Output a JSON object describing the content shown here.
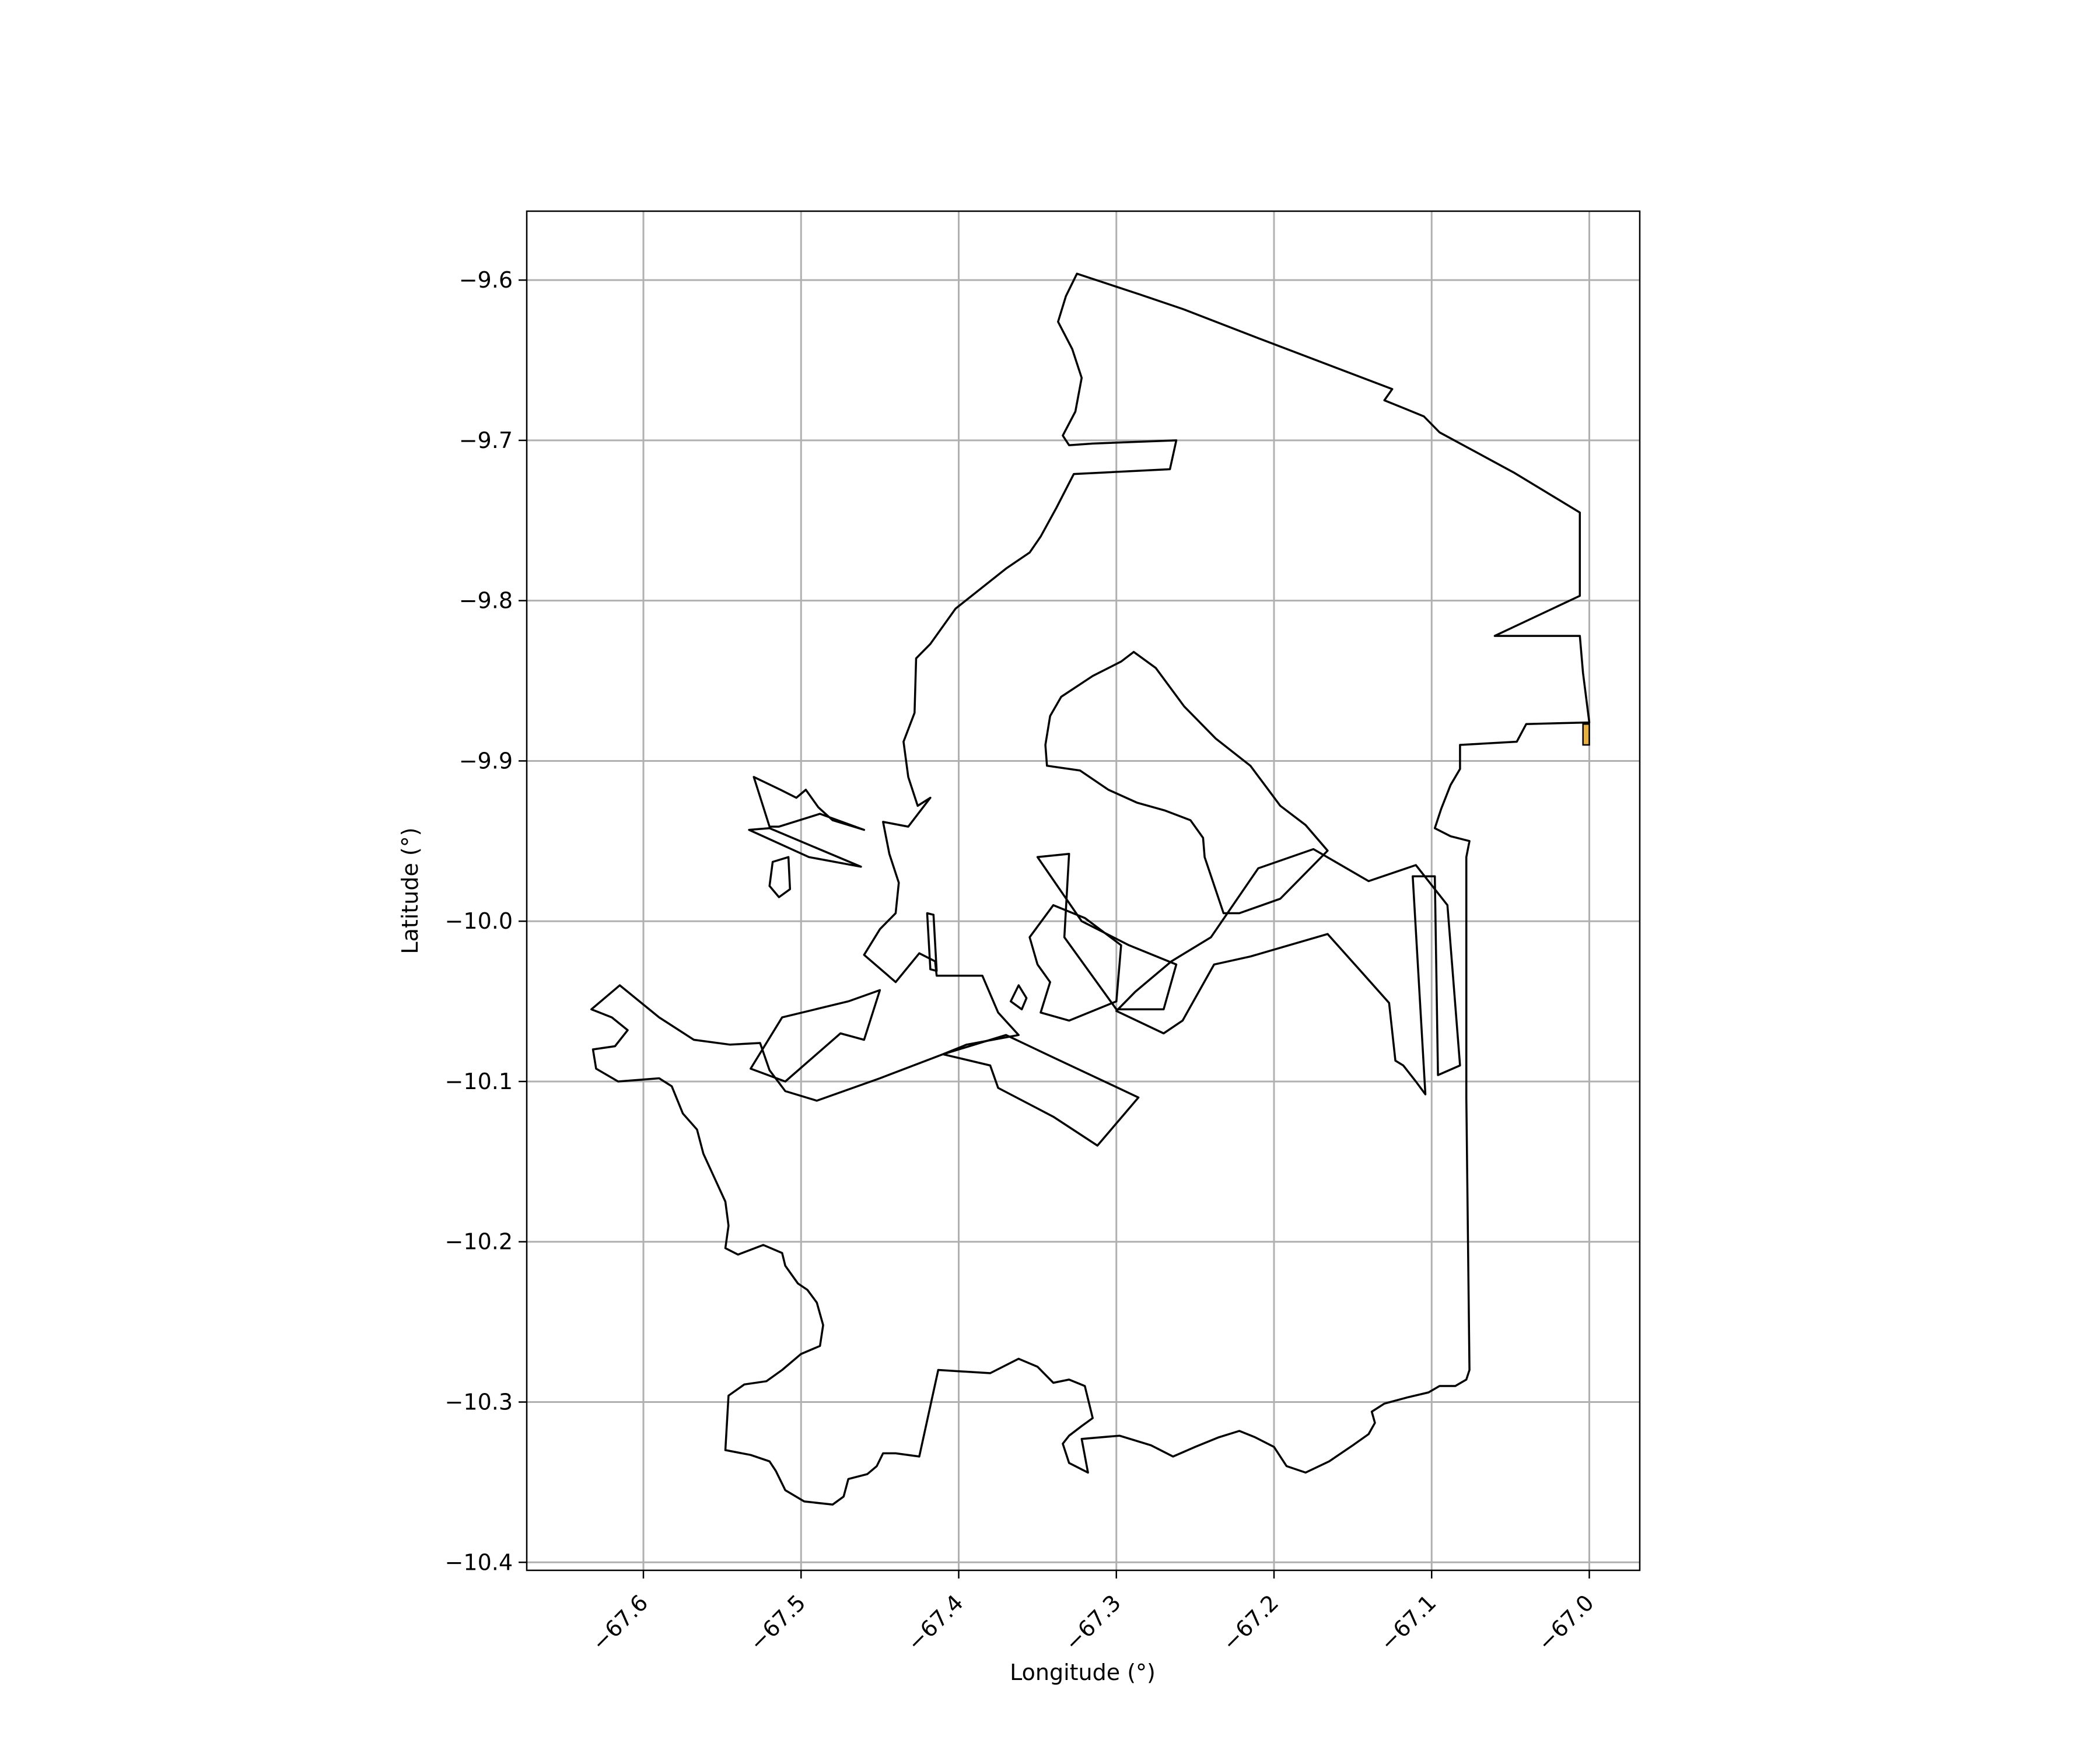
{
  "chart_data": {
    "type": "map",
    "xlabel": "Longitude (°)",
    "ylabel": "Latitude (°)",
    "xlim": [
      -67.674,
      -66.968
    ],
    "ylim": [
      -10.405,
      -9.557
    ],
    "xticks": [
      -67.6,
      -67.5,
      -67.4,
      -67.3,
      -67.2,
      -67.1,
      -67.0
    ],
    "xtick_labels": [
      "−67.6",
      "−67.5",
      "−67.4",
      "−67.3",
      "−67.2",
      "−67.1",
      "−67.0"
    ],
    "yticks": [
      -9.6,
      -9.7,
      -9.8,
      -9.9,
      -10.0,
      -10.1,
      -10.2,
      -10.3,
      -10.4
    ],
    "ytick_labels": [
      "−9.6",
      "−9.7",
      "−9.8",
      "−9.9",
      "−10.0",
      "−10.1",
      "−10.2",
      "−10.3",
      "−10.4"
    ],
    "grid": true,
    "outline_color": "#000000",
    "highlight_color": "#e8b040",
    "grid_color": "#b0b0b0",
    "polygons": [
      {
        "name": "outer-boundary",
        "coords": [
          [
            -67.325,
            -9.596
          ],
          [
            -67.332,
            -9.61
          ],
          [
            -67.337,
            -9.626
          ],
          [
            -67.328,
            -9.643
          ],
          [
            -67.322,
            -9.661
          ],
          [
            -67.326,
            -9.682
          ],
          [
            -67.334,
            -9.697
          ],
          [
            -67.33,
            -9.703
          ],
          [
            -67.315,
            -9.702
          ],
          [
            -67.262,
            -9.7
          ],
          [
            -67.266,
            -9.718
          ],
          [
            -67.327,
            -9.721
          ],
          [
            -67.338,
            -9.742
          ],
          [
            -67.348,
            -9.76
          ],
          [
            -67.355,
            -9.77
          ],
          [
            -67.37,
            -9.78
          ],
          [
            -67.402,
            -9.805
          ],
          [
            -67.418,
            -9.827
          ],
          [
            -67.427,
            -9.836
          ],
          [
            -67.428,
            -9.87
          ],
          [
            -67.435,
            -9.888
          ],
          [
            -67.432,
            -9.91
          ],
          [
            -67.426,
            -9.928
          ],
          [
            -67.418,
            -9.923
          ],
          [
            -67.432,
            -9.941
          ],
          [
            -67.448,
            -9.938
          ],
          [
            -67.444,
            -9.958
          ],
          [
            -67.438,
            -9.976
          ],
          [
            -67.44,
            -9.995
          ],
          [
            -67.45,
            -10.005
          ],
          [
            -67.46,
            -10.021
          ],
          [
            -67.44,
            -10.038
          ],
          [
            -67.425,
            -10.02
          ],
          [
            -67.415,
            -10.025
          ],
          [
            -67.414,
            -10.034
          ],
          [
            -67.385,
            -10.034
          ],
          [
            -67.375,
            -10.057
          ],
          [
            -67.362,
            -10.071
          ],
          [
            -67.395,
            -10.077
          ],
          [
            -67.41,
            -10.083
          ],
          [
            -67.45,
            -10.098
          ],
          [
            -67.49,
            -10.112
          ],
          [
            -67.51,
            -10.106
          ],
          [
            -67.52,
            -10.093
          ],
          [
            -67.526,
            -10.076
          ],
          [
            -67.545,
            -10.077
          ],
          [
            -67.568,
            -10.074
          ],
          [
            -67.59,
            -10.06
          ],
          [
            -67.615,
            -10.04
          ],
          [
            -67.633,
            -10.055
          ],
          [
            -67.62,
            -10.06
          ],
          [
            -67.61,
            -10.068
          ],
          [
            -67.618,
            -10.078
          ],
          [
            -67.632,
            -10.08
          ],
          [
            -67.63,
            -10.092
          ],
          [
            -67.616,
            -10.1
          ],
          [
            -67.59,
            -10.098
          ],
          [
            -67.582,
            -10.103
          ],
          [
            -67.575,
            -10.12
          ],
          [
            -67.566,
            -10.13
          ],
          [
            -67.562,
            -10.145
          ],
          [
            -67.555,
            -10.16
          ],
          [
            -67.548,
            -10.175
          ],
          [
            -67.546,
            -10.19
          ],
          [
            -67.548,
            -10.204
          ],
          [
            -67.54,
            -10.208
          ],
          [
            -67.524,
            -10.202
          ],
          [
            -67.512,
            -10.207
          ],
          [
            -67.51,
            -10.215
          ],
          [
            -67.502,
            -10.226
          ],
          [
            -67.496,
            -10.23
          ],
          [
            -67.49,
            -10.238
          ],
          [
            -67.486,
            -10.252
          ],
          [
            -67.488,
            -10.265
          ],
          [
            -67.5,
            -10.27
          ],
          [
            -67.512,
            -10.28
          ],
          [
            -67.522,
            -10.287
          ],
          [
            -67.536,
            -10.289
          ],
          [
            -67.546,
            -10.296
          ],
          [
            -67.548,
            -10.33
          ],
          [
            -67.532,
            -10.333
          ],
          [
            -67.52,
            -10.337
          ],
          [
            -67.516,
            -10.343
          ],
          [
            -67.51,
            -10.355
          ],
          [
            -67.498,
            -10.362
          ],
          [
            -67.48,
            -10.364
          ],
          [
            -67.473,
            -10.359
          ],
          [
            -67.47,
            -10.348
          ],
          [
            -67.458,
            -10.345
          ],
          [
            -67.452,
            -10.34
          ],
          [
            -67.448,
            -10.332
          ],
          [
            -67.44,
            -10.332
          ],
          [
            -67.425,
            -10.334
          ],
          [
            -67.413,
            -10.28
          ],
          [
            -67.38,
            -10.282
          ],
          [
            -67.362,
            -10.273
          ],
          [
            -67.35,
            -10.278
          ],
          [
            -67.34,
            -10.288
          ],
          [
            -67.33,
            -10.286
          ],
          [
            -67.32,
            -10.29
          ],
          [
            -67.315,
            -10.31
          ],
          [
            -67.322,
            -10.315
          ],
          [
            -67.33,
            -10.321
          ],
          [
            -67.334,
            -10.326
          ],
          [
            -67.33,
            -10.338
          ],
          [
            -67.318,
            -10.344
          ],
          [
            -67.322,
            -10.323
          ],
          [
            -67.298,
            -10.321
          ],
          [
            -67.278,
            -10.327
          ],
          [
            -67.264,
            -10.334
          ],
          [
            -67.25,
            -10.328
          ],
          [
            -67.235,
            -10.322
          ],
          [
            -67.222,
            -10.318
          ],
          [
            -67.212,
            -10.322
          ],
          [
            -67.2,
            -10.328
          ],
          [
            -67.192,
            -10.34
          ],
          [
            -67.18,
            -10.344
          ],
          [
            -67.165,
            -10.337
          ],
          [
            -67.15,
            -10.327
          ],
          [
            -67.14,
            -10.32
          ],
          [
            -67.136,
            -10.313
          ],
          [
            -67.138,
            -10.306
          ],
          [
            -67.13,
            -10.301
          ],
          [
            -67.115,
            -10.297
          ],
          [
            -67.102,
            -10.294
          ],
          [
            -67.095,
            -10.29
          ],
          [
            -67.085,
            -10.29
          ],
          [
            -67.078,
            -10.286
          ],
          [
            -67.076,
            -10.28
          ],
          [
            -67.078,
            -10.11
          ],
          [
            -67.078,
            -9.96
          ],
          [
            -67.076,
            -9.95
          ],
          [
            -67.088,
            -9.947
          ],
          [
            -67.098,
            -9.942
          ],
          [
            -67.094,
            -9.93
          ],
          [
            -67.088,
            -9.915
          ],
          [
            -67.082,
            -9.905
          ],
          [
            -67.082,
            -9.89
          ],
          [
            -67.046,
            -9.888
          ],
          [
            -67.04,
            -9.877
          ],
          [
            -67.0,
            -9.876
          ],
          [
            -67.004,
            -9.845
          ],
          [
            -67.006,
            -9.822
          ],
          [
            -67.06,
            -9.822
          ],
          [
            -67.006,
            -9.797
          ],
          [
            -67.006,
            -9.745
          ],
          [
            -67.048,
            -9.72
          ],
          [
            -67.095,
            -9.695
          ],
          [
            -67.105,
            -9.685
          ],
          [
            -67.13,
            -9.675
          ],
          [
            -67.125,
            -9.668
          ],
          [
            -67.208,
            -9.637
          ],
          [
            -67.258,
            -9.618
          ],
          [
            -67.285,
            -9.609
          ],
          [
            -67.325,
            -9.596
          ]
        ]
      },
      {
        "name": "inner-north-tract",
        "coords": [
          [
            -67.289,
            -9.832
          ],
          [
            -67.297,
            -9.838
          ],
          [
            -67.315,
            -9.847
          ],
          [
            -67.335,
            -9.86
          ],
          [
            -67.342,
            -9.872
          ],
          [
            -67.345,
            -9.89
          ],
          [
            -67.344,
            -9.903
          ],
          [
            -67.323,
            -9.906
          ],
          [
            -67.305,
            -9.918
          ],
          [
            -67.287,
            -9.926
          ],
          [
            -67.269,
            -9.931
          ],
          [
            -67.253,
            -9.937
          ],
          [
            -67.245,
            -9.948
          ],
          [
            -67.244,
            -9.96
          ],
          [
            -67.232,
            -9.995
          ],
          [
            -67.222,
            -9.995
          ],
          [
            -67.196,
            -9.986
          ],
          [
            -67.166,
            -9.956
          ],
          [
            -67.18,
            -9.94
          ],
          [
            -67.196,
            -9.928
          ],
          [
            -67.215,
            -9.903
          ],
          [
            -67.237,
            -9.886
          ],
          [
            -67.257,
            -9.866
          ],
          [
            -67.275,
            -9.842
          ],
          [
            -67.289,
            -9.832
          ]
        ]
      },
      {
        "name": "east-middle-tract",
        "coords": [
          [
            -67.288,
            -10.044
          ],
          [
            -67.3,
            -10.056
          ],
          [
            -67.27,
            -10.07
          ],
          [
            -67.258,
            -10.062
          ],
          [
            -67.238,
            -10.027
          ],
          [
            -67.215,
            -10.022
          ],
          [
            -67.166,
            -10.008
          ],
          [
            -67.146,
            -10.03
          ],
          [
            -67.127,
            -10.051
          ],
          [
            -67.123,
            -10.087
          ],
          [
            -67.118,
            -10.09
          ],
          [
            -67.11,
            -10.1
          ],
          [
            -67.104,
            -10.108
          ],
          [
            -67.112,
            -9.972
          ],
          [
            -67.098,
            -9.972
          ],
          [
            -67.096,
            -10.096
          ],
          [
            -67.082,
            -10.09
          ],
          [
            -67.09,
            -9.99
          ],
          [
            -67.11,
            -9.965
          ],
          [
            -67.14,
            -9.975
          ],
          [
            -67.175,
            -9.955
          ],
          [
            -67.21,
            -9.967
          ],
          [
            -67.24,
            -10.01
          ],
          [
            -67.265,
            -10.025
          ],
          [
            -67.288,
            -10.044
          ]
        ]
      },
      {
        "name": "west-island",
        "coords": [
          [
            -67.52,
            -9.941
          ],
          [
            -67.53,
            -9.91
          ],
          [
            -67.513,
            -9.918
          ],
          [
            -67.503,
            -9.923
          ],
          [
            -67.497,
            -9.918
          ],
          [
            -67.489,
            -9.929
          ],
          [
            -67.48,
            -9.937
          ],
          [
            -67.46,
            -9.943
          ],
          [
            -67.488,
            -9.933
          ],
          [
            -67.514,
            -9.941
          ],
          [
            -67.52,
            -9.941
          ]
        ]
      },
      {
        "name": "west-small-island",
        "coords": [
          [
            -67.508,
            -9.96
          ],
          [
            -67.518,
            -9.963
          ],
          [
            -67.52,
            -9.978
          ],
          [
            -67.514,
            -9.985
          ],
          [
            -67.507,
            -9.98
          ],
          [
            -67.508,
            -9.96
          ]
        ]
      },
      {
        "name": "west-strip",
        "coords": [
          [
            -67.533,
            -9.943
          ],
          [
            -67.52,
            -9.942
          ],
          [
            -67.462,
            -9.966
          ],
          [
            -67.495,
            -9.96
          ],
          [
            -67.533,
            -9.943
          ]
        ]
      },
      {
        "name": "central-diagonal",
        "coords": [
          [
            -67.33,
            -9.958
          ],
          [
            -67.35,
            -9.96
          ],
          [
            -67.322,
            -10.0
          ],
          [
            -67.292,
            -10.015
          ],
          [
            -67.262,
            -10.027
          ],
          [
            -67.27,
            -10.055
          ],
          [
            -67.3,
            -10.055
          ],
          [
            -67.333,
            -10.01
          ],
          [
            -67.33,
            -9.958
          ]
        ]
      },
      {
        "name": "central-loop",
        "coords": [
          [
            -67.34,
            -9.99
          ],
          [
            -67.355,
            -10.01
          ],
          [
            -67.35,
            -10.027
          ],
          [
            -67.342,
            -10.038
          ],
          [
            -67.348,
            -10.057
          ],
          [
            -67.33,
            -10.062
          ],
          [
            -67.3,
            -10.05
          ],
          [
            -67.297,
            -10.015
          ],
          [
            -67.32,
            -9.998
          ],
          [
            -67.34,
            -9.99
          ]
        ]
      },
      {
        "name": "south-central-parcel",
        "coords": [
          [
            -67.41,
            -10.083
          ],
          [
            -67.38,
            -10.09
          ],
          [
            -67.375,
            -10.104
          ],
          [
            -67.34,
            -10.122
          ],
          [
            -67.312,
            -10.14
          ],
          [
            -67.286,
            -10.11
          ],
          [
            -67.34,
            -10.085
          ],
          [
            -67.37,
            -10.071
          ],
          [
            -67.41,
            -10.083
          ]
        ]
      },
      {
        "name": "southwest-parcel",
        "coords": [
          [
            -67.512,
            -10.06
          ],
          [
            -67.47,
            -10.05
          ],
          [
            -67.45,
            -10.043
          ],
          [
            -67.46,
            -10.074
          ],
          [
            -67.475,
            -10.07
          ],
          [
            -67.51,
            -10.1
          ],
          [
            -67.532,
            -10.092
          ],
          [
            -67.512,
            -10.06
          ]
        ]
      },
      {
        "name": "thin-central-strip",
        "coords": [
          [
            -67.42,
            -9.995
          ],
          [
            -67.418,
            -10.03
          ],
          [
            -67.414,
            -10.031
          ],
          [
            -67.416,
            -9.996
          ],
          [
            -67.42,
            -9.995
          ]
        ]
      },
      {
        "name": "small-central-notch",
        "coords": [
          [
            -67.362,
            -10.04
          ],
          [
            -67.357,
            -10.048
          ],
          [
            -67.36,
            -10.055
          ],
          [
            -67.367,
            -10.05
          ],
          [
            -67.362,
            -10.04
          ]
        ]
      }
    ],
    "highlight": {
      "name": "highlight-patch",
      "coords": [
        [
          -67.004,
          -9.877
        ],
        [
          -67.0,
          -9.877
        ],
        [
          -67.0,
          -9.89
        ],
        [
          -67.004,
          -9.89
        ]
      ]
    }
  }
}
